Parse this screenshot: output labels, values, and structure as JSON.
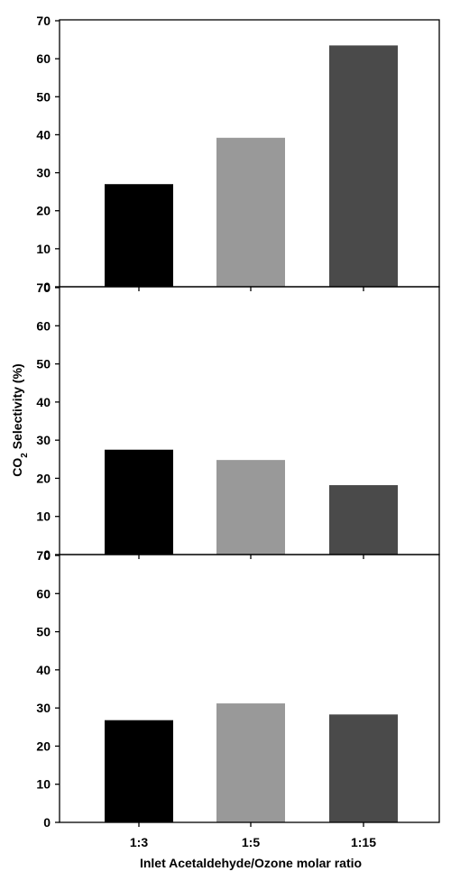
{
  "chart_data": [
    {
      "type": "bar",
      "categories": [
        "1:3",
        "1:5",
        "1:15"
      ],
      "values": [
        27,
        39.2,
        63.5
      ],
      "ylim": [
        0,
        70
      ],
      "yticks": [
        0,
        10,
        20,
        30,
        40,
        50,
        60,
        70
      ],
      "grid": false
    },
    {
      "type": "bar",
      "categories": [
        "1:3",
        "1:5",
        "1:15"
      ],
      "values": [
        27.5,
        24.8,
        18.2
      ],
      "ylim": [
        0,
        70
      ],
      "yticks": [
        0,
        10,
        20,
        30,
        40,
        50,
        60,
        70
      ],
      "grid": false
    },
    {
      "type": "bar",
      "categories": [
        "1:3",
        "1:5",
        "1:15"
      ],
      "values": [
        26.8,
        31.2,
        28.3
      ],
      "ylim": [
        0,
        70
      ],
      "yticks": [
        0,
        10,
        20,
        30,
        40,
        50,
        60,
        70
      ],
      "grid": false
    }
  ],
  "bar_colors": [
    "#000000",
    "#999999",
    "#4a4a4a"
  ],
  "ylabel": {
    "prefix": "CO",
    "subscript": "2",
    "suffix": " Selectivity (%)"
  },
  "xlabel": "Inlet Acetaldehyde/Ozone molar ratio"
}
